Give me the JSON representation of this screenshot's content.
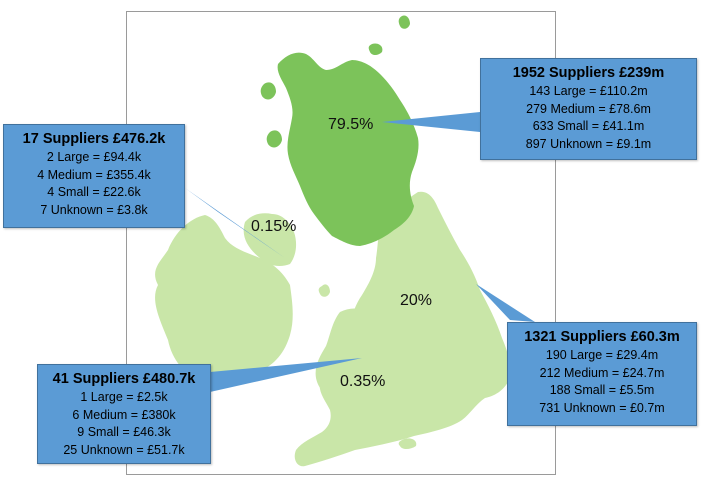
{
  "map": {
    "colors": {
      "scotland": "#7cc35a",
      "rest": "#c9e6a8",
      "callout": "#5b9bd5"
    },
    "region_shares": [
      {
        "region": "scotland",
        "percent": "79.5%"
      },
      {
        "region": "northern_ireland",
        "percent": "0.15%"
      },
      {
        "region": "england",
        "percent": "20%"
      },
      {
        "region": "wales",
        "percent": "0.35%"
      }
    ]
  },
  "callouts": {
    "scotland": {
      "title": "1952 Suppliers  £239m",
      "rows": [
        "143 Large = £110.2m",
        "279 Medium = £78.6m",
        "633 Small = £41.1m",
        "897 Unknown = £9.1m"
      ]
    },
    "northern_ireland": {
      "title": "17 Suppliers  £476.2k",
      "rows": [
        "2 Large = £94.4k",
        "4 Medium = £355.4k",
        "4 Small = £22.6k",
        "7 Unknown = £3.8k"
      ]
    },
    "england": {
      "title": "1321 Suppliers £60.3m",
      "rows": [
        "190 Large = £29.4m",
        "212 Medium = £24.7m",
        "188 Small = £5.5m",
        "731 Unknown = £0.7m"
      ]
    },
    "wales": {
      "title": "41 Suppliers  £480.7k",
      "rows": [
        "1 Large = £2.5k",
        "6 Medium = £380k",
        "9 Small = £46.3k",
        "25 Unknown = £51.7k"
      ]
    }
  }
}
